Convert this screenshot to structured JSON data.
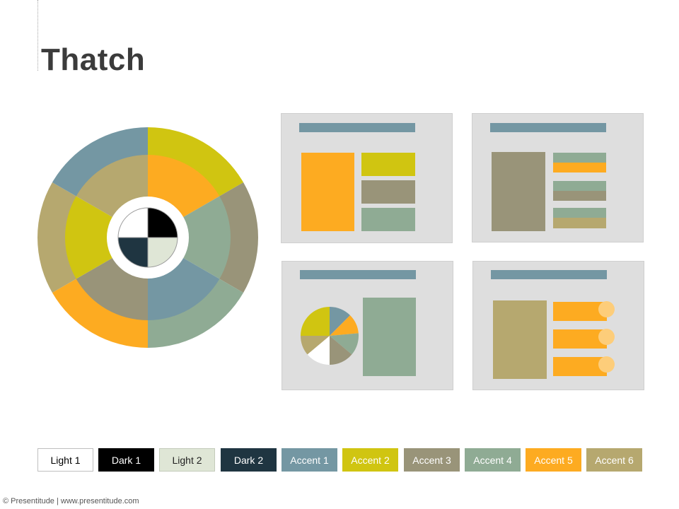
{
  "title": "Thatch",
  "footer": "© Presentitude | www.presentitude.com",
  "colors": {
    "light1": "#ffffff",
    "dark1": "#000000",
    "light2": "#dfe6d6",
    "dark2": "#1f3541",
    "accent1": "#7497a3",
    "accent2": "#d0c511",
    "accent3": "#999479",
    "accent4": "#8fab94",
    "accent5": "#fdab21",
    "accent6": "#b6a86f",
    "slide_bg": "#dedede"
  },
  "swatches": [
    {
      "label": "Light 1",
      "bg": "#ffffff",
      "fg": "#000000",
      "border": "#bfbfbf"
    },
    {
      "label": "Dark 1",
      "bg": "#000000",
      "fg": "#ffffff",
      "border": "#000000"
    },
    {
      "label": "Light 2",
      "bg": "#dfe6d6",
      "fg": "#1f1f1f",
      "border": "#c4cbbb"
    },
    {
      "label": "Dark 2",
      "bg": "#1f3541",
      "fg": "#ffffff",
      "border": "#1f3541"
    },
    {
      "label": "Accent 1",
      "bg": "#7497a3",
      "fg": "#ffffff",
      "border": "#7497a3"
    },
    {
      "label": "Accent 2",
      "bg": "#d0c511",
      "fg": "#ffffff",
      "border": "#d0c511"
    },
    {
      "label": "Accent 3",
      "bg": "#999479",
      "fg": "#ffffff",
      "border": "#999479"
    },
    {
      "label": "Accent 4",
      "bg": "#8fab94",
      "fg": "#ffffff",
      "border": "#8fab94"
    },
    {
      "label": "Accent 5",
      "bg": "#fdab21",
      "fg": "#ffffff",
      "border": "#fdab21"
    },
    {
      "label": "Accent 6",
      "bg": "#b6a86f",
      "fg": "#ffffff",
      "border": "#b6a86f"
    }
  ],
  "wheel": {
    "outer_ring": [
      "#d0c511",
      "#999479",
      "#8fab94",
      "#fdab21",
      "#b6a86f",
      "#7497a3"
    ],
    "middle_ring": [
      "#fdab21",
      "#8fab94",
      "#7497a3",
      "#999479",
      "#d0c511",
      "#b6a86f"
    ],
    "center": [
      "#000000",
      "#dfe6d6",
      "#1f3541",
      "#ffffff"
    ]
  },
  "pie": [
    "#7497a3",
    "#fdab21",
    "#8fab94",
    "#999479",
    "#ffffff",
    "#b6a86f",
    "#d0c511"
  ]
}
